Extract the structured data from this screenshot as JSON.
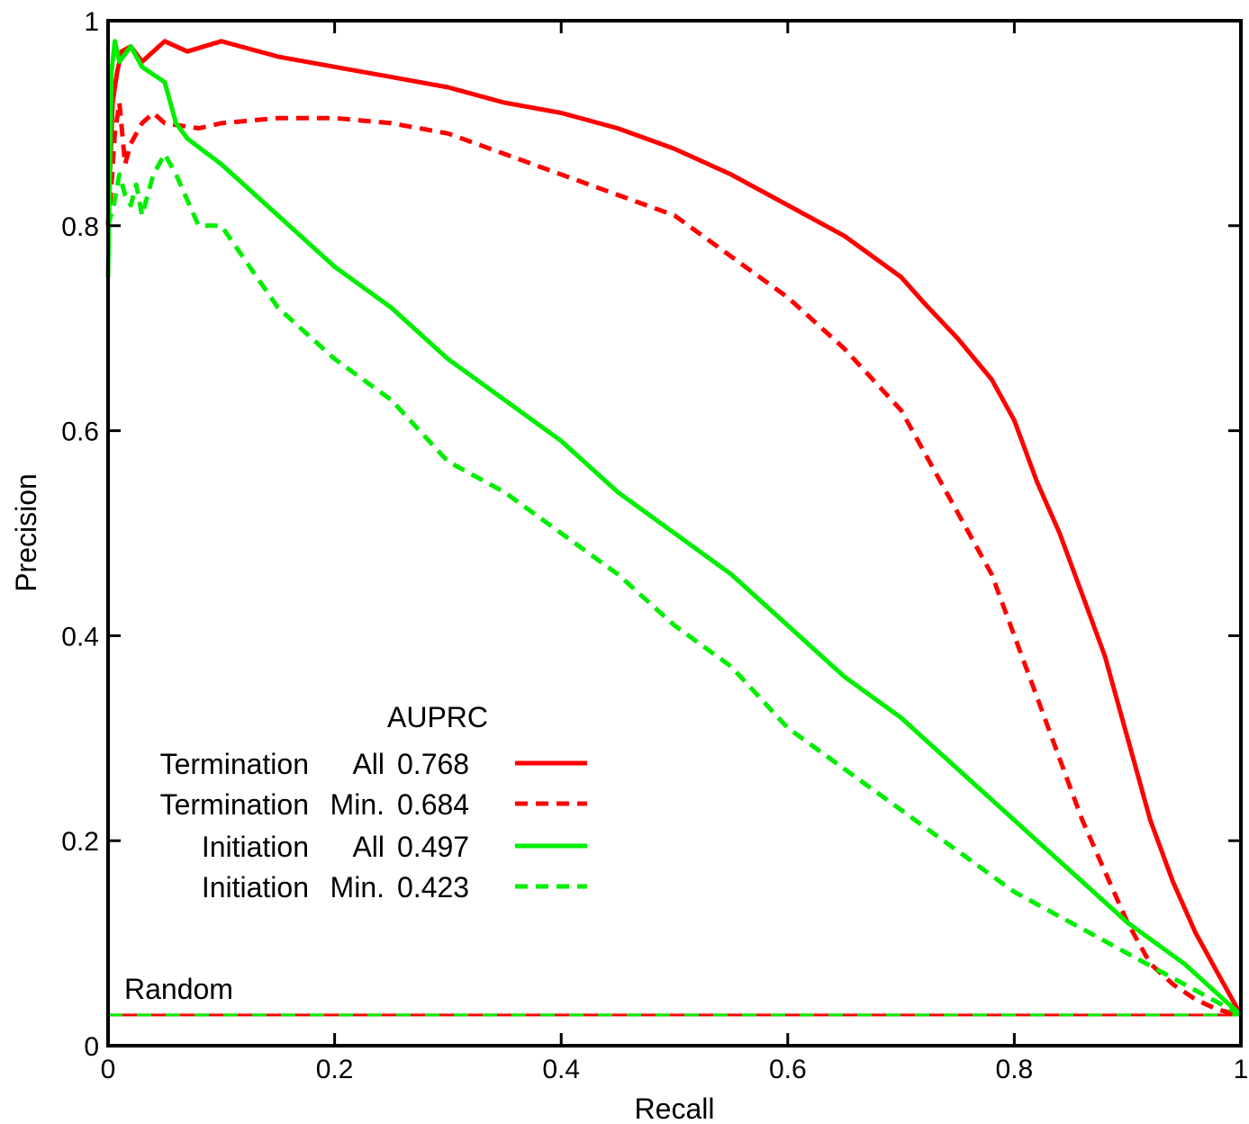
{
  "chart_data": {
    "type": "line",
    "xlabel": "Recall",
    "ylabel": "Precision",
    "xlim": [
      0,
      1
    ],
    "ylim": [
      0,
      1
    ],
    "xticks": [
      "0",
      "0.2",
      "0.4",
      "0.6",
      "0.8",
      "1"
    ],
    "yticks": [
      "0",
      "0.2",
      "0.4",
      "0.6",
      "0.8",
      "1"
    ],
    "grid": false,
    "legend_position": "lower-left",
    "legend_title": "AUPRC",
    "series": [
      {
        "name": "Termination All",
        "label_main": "Termination",
        "label_sub": "All",
        "auprc": "0.768",
        "color": "#ff0000",
        "dash": "solid",
        "x": [
          0,
          0.002,
          0.004,
          0.008,
          0.012,
          0.02,
          0.03,
          0.05,
          0.07,
          0.1,
          0.15,
          0.2,
          0.25,
          0.3,
          0.35,
          0.4,
          0.45,
          0.5,
          0.55,
          0.6,
          0.65,
          0.7,
          0.72,
          0.75,
          0.78,
          0.8,
          0.82,
          0.84,
          0.86,
          0.88,
          0.9,
          0.92,
          0.94,
          0.96,
          0.98,
          1.0
        ],
        "y": [
          0.8,
          0.86,
          0.92,
          0.95,
          0.97,
          0.975,
          0.96,
          0.98,
          0.97,
          0.98,
          0.965,
          0.955,
          0.945,
          0.935,
          0.92,
          0.91,
          0.895,
          0.875,
          0.85,
          0.82,
          0.79,
          0.75,
          0.725,
          0.69,
          0.65,
          0.61,
          0.55,
          0.5,
          0.44,
          0.38,
          0.3,
          0.22,
          0.16,
          0.11,
          0.07,
          0.03
        ]
      },
      {
        "name": "Termination Min.",
        "label_main": "Termination",
        "label_sub": "Min.",
        "auprc": "0.684",
        "color": "#ff0000",
        "dash": "dashed",
        "x": [
          0,
          0.003,
          0.006,
          0.01,
          0.015,
          0.02,
          0.03,
          0.04,
          0.05,
          0.08,
          0.1,
          0.15,
          0.2,
          0.25,
          0.3,
          0.35,
          0.4,
          0.45,
          0.5,
          0.55,
          0.6,
          0.65,
          0.7,
          0.72,
          0.75,
          0.78,
          0.8,
          0.82,
          0.84,
          0.86,
          0.88,
          0.9,
          0.92,
          0.94,
          0.96,
          0.98,
          1.0
        ],
        "y": [
          0.8,
          0.84,
          0.89,
          0.92,
          0.86,
          0.88,
          0.9,
          0.91,
          0.9,
          0.895,
          0.9,
          0.905,
          0.905,
          0.9,
          0.89,
          0.87,
          0.85,
          0.83,
          0.81,
          0.77,
          0.73,
          0.68,
          0.62,
          0.58,
          0.52,
          0.46,
          0.4,
          0.34,
          0.28,
          0.22,
          0.17,
          0.12,
          0.08,
          0.06,
          0.045,
          0.035,
          0.03
        ]
      },
      {
        "name": "Initiation All",
        "label_main": "Initiation",
        "label_sub": "All",
        "auprc": "0.497",
        "color": "#00ee00",
        "dash": "solid",
        "x": [
          0,
          0.003,
          0.006,
          0.01,
          0.02,
          0.03,
          0.05,
          0.06,
          0.07,
          0.1,
          0.15,
          0.2,
          0.25,
          0.3,
          0.35,
          0.4,
          0.45,
          0.5,
          0.55,
          0.6,
          0.65,
          0.7,
          0.75,
          0.8,
          0.85,
          0.9,
          0.95,
          1.0
        ],
        "y": [
          0.75,
          0.95,
          0.98,
          0.96,
          0.975,
          0.955,
          0.94,
          0.9,
          0.885,
          0.86,
          0.81,
          0.76,
          0.72,
          0.67,
          0.63,
          0.59,
          0.54,
          0.5,
          0.46,
          0.41,
          0.36,
          0.32,
          0.27,
          0.22,
          0.17,
          0.12,
          0.08,
          0.03
        ]
      },
      {
        "name": "Initiation Min.",
        "label_main": "Initiation",
        "label_sub": "Min.",
        "auprc": "0.423",
        "color": "#00ee00",
        "dash": "dashed",
        "x": [
          0,
          0.005,
          0.01,
          0.015,
          0.02,
          0.025,
          0.03,
          0.04,
          0.05,
          0.06,
          0.08,
          0.1,
          0.15,
          0.2,
          0.25,
          0.3,
          0.35,
          0.4,
          0.45,
          0.5,
          0.55,
          0.6,
          0.65,
          0.7,
          0.75,
          0.8,
          0.85,
          0.9,
          0.95,
          1.0
        ],
        "y": [
          0.8,
          0.82,
          0.85,
          0.83,
          0.82,
          0.84,
          0.81,
          0.85,
          0.87,
          0.85,
          0.8,
          0.8,
          0.72,
          0.67,
          0.63,
          0.57,
          0.54,
          0.5,
          0.46,
          0.41,
          0.37,
          0.31,
          0.27,
          0.23,
          0.19,
          0.15,
          0.12,
          0.09,
          0.06,
          0.03
        ]
      }
    ],
    "baseline": {
      "label": "Random",
      "y": 0.03,
      "colors": [
        "#ff0000",
        "#00ee00"
      ]
    }
  }
}
